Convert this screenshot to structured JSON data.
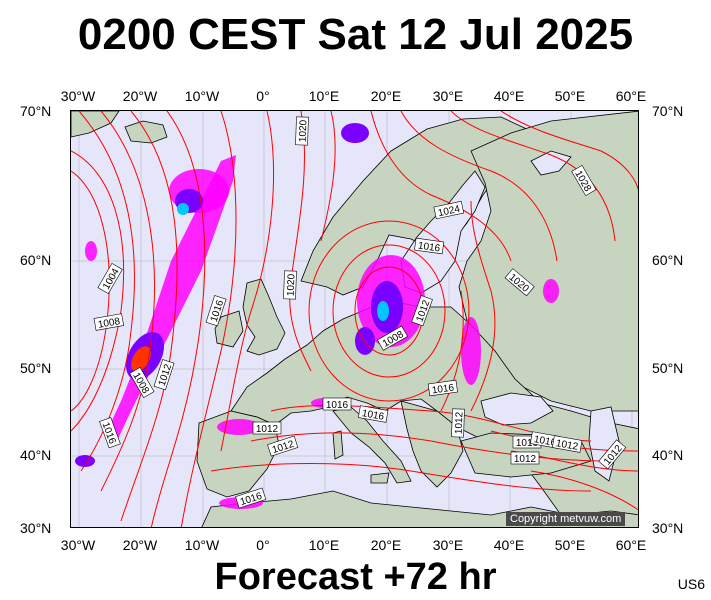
{
  "title": "0200 CEST Sat 12 Jul 2025",
  "subtitle": "Forecast +72 hr",
  "model_code": "US6",
  "copyright": "Copyright metvuw.com",
  "axes": {
    "lon_labels": [
      "30°W",
      "20°W",
      "10°W",
      "0°",
      "10°E",
      "20°E",
      "30°E",
      "40°E",
      "50°E",
      "60°E"
    ],
    "lat_labels": [
      "70°N",
      "60°N",
      "50°N",
      "40°N",
      "30°N"
    ]
  },
  "isobar_labels": [
    "1020",
    "1028",
    "1024",
    "1016",
    "1004",
    "1020",
    "1020",
    "1008",
    "1016",
    "1012",
    "1012",
    "1008",
    "1008",
    "1016",
    "1016",
    "1016",
    "1016",
    "1012",
    "1012",
    "1012",
    "1016",
    "1016",
    "1012",
    "1016",
    "1012",
    "1012"
  ],
  "colors": {
    "isobar": "#ff0000",
    "land": "#c6d4c0",
    "sea": "#e6e6fa",
    "precip_light": "#ff00ff",
    "precip_mid": "#7a00ff",
    "precip_heavy": "#00c8ff",
    "precip_extreme": "#ff3300"
  }
}
